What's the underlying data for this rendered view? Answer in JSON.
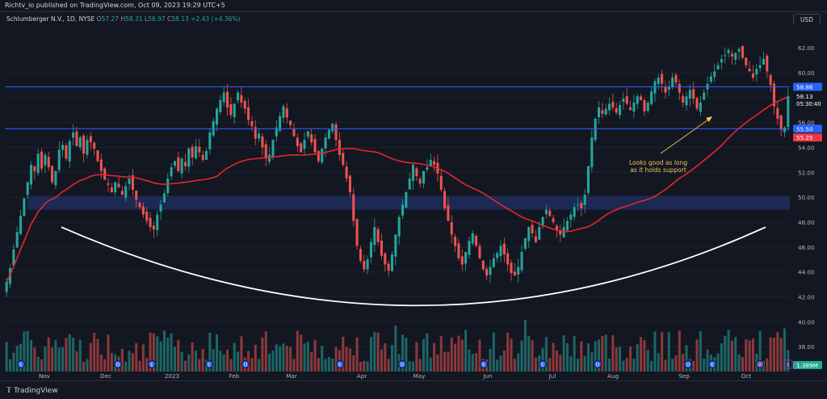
{
  "header": {
    "published": "Richtv_io published on TradingView.com, Oct 09, 2023 19:29 UTC+5"
  },
  "legend": {
    "symbol": "Schlumberger N.V., 1D, NYSE",
    "o_label": "O",
    "o_value": "57.27",
    "h_label": "H",
    "h_value": "58.31",
    "l_label": "L",
    "l_value": "56.97",
    "c_label": "C",
    "c_value": "58.13",
    "change": "+2.43 (+4.36%)"
  },
  "currency": "USD",
  "footer": {
    "brand": "TradingView"
  },
  "annotation": {
    "line1": "Looks good as long",
    "line2": "as it holds support"
  },
  "colors": {
    "bg": "#131722",
    "up": "#26a69a",
    "down": "#ef5350",
    "ma": "#e5262a",
    "hline": "#2962ff",
    "zone": "#1e2d5c",
    "arc": "#ffffff",
    "note": "#f5c451"
  },
  "chart_data": {
    "type": "candlestick",
    "title": "Schlumberger N.V., 1D, NYSE",
    "ylim": [
      36,
      63.5
    ],
    "y_ticks": [
      "62.00",
      "60.00",
      "58.00",
      "56.00",
      "54.00",
      "52.00",
      "50.00",
      "48.00",
      "46.00",
      "44.00",
      "42.00",
      "40.00",
      "38.00"
    ],
    "x_ticks": [
      "Nov",
      "Dec",
      "2023",
      "Feb",
      "Mar",
      "Apr",
      "May",
      "Jun",
      "Jul",
      "Aug",
      "Sep",
      "Oct"
    ],
    "horizontal_lines": [
      {
        "value": 58.86,
        "label": "58.86"
      },
      {
        "value": 55.5,
        "label": "55.50"
      }
    ],
    "support_zone": [
      49.0,
      50.1
    ],
    "price_labels": [
      {
        "value": 58.13,
        "label": "58.13",
        "sublabel": "05:30:40"
      },
      {
        "value": 55.25,
        "label": "55.25"
      }
    ],
    "volume_label": "1.389M",
    "closes": [
      43.2,
      44.3,
      45.8,
      47.2,
      48.5,
      49.9,
      51.2,
      52.6,
      52.1,
      53.5,
      52.3,
      53.4,
      52.4,
      51.2,
      52.1,
      53.8,
      54.2,
      53.1,
      54.5,
      55.2,
      54.1,
      54.8,
      53.5,
      54.6,
      54.4,
      53.9,
      52.9,
      52.1,
      51.4,
      51.0,
      50.4,
      51.2,
      50.8,
      50.2,
      50.9,
      51.5,
      50.6,
      49.8,
      49.2,
      48.6,
      48.1,
      47.6,
      47.4,
      48.6,
      49.4,
      50.3,
      51.5,
      52.4,
      52.9,
      52.1,
      53.1,
      52.5,
      53.9,
      53.2,
      54.1,
      53.6,
      53.0,
      53.7,
      55.2,
      56.1,
      57.1,
      57.8,
      58.4,
      57.2,
      56.6,
      57.5,
      58.4,
      57.6,
      57.1,
      56.2,
      55.7,
      54.7,
      55.1,
      54.0,
      53.1,
      53.4,
      54.6,
      55.6,
      56.5,
      57.3,
      56.4,
      55.8,
      54.9,
      54.1,
      53.6,
      54.6,
      55.3,
      54.4,
      53.6,
      52.9,
      53.9,
      54.8,
      55.4,
      55.9,
      54.6,
      53.4,
      52.6,
      51.5,
      50.4,
      48.1,
      46.1,
      44.9,
      44.2,
      45.0,
      46.4,
      47.6,
      46.4,
      45.3,
      44.6,
      44.1,
      45.4,
      47.0,
      48.4,
      49.4,
      50.4,
      51.5,
      52.6,
      51.7,
      51.1,
      52.1,
      52.4,
      53.0,
      52.6,
      51.9,
      50.6,
      49.1,
      48.1,
      47.0,
      46.1,
      45.1,
      44.6,
      45.6,
      46.5,
      47.1,
      46.1,
      45.1,
      44.2,
      43.7,
      44.4,
      45.1,
      45.5,
      46.1,
      45.4,
      44.6,
      43.9,
      43.7,
      44.4,
      45.6,
      46.7,
      47.6,
      47.1,
      46.4,
      47.6,
      48.4,
      49.0,
      48.5,
      48.0,
      47.4,
      47.0,
      47.6,
      48.1,
      48.6,
      49.2,
      49.4,
      49.1,
      50.2,
      52.5,
      54.8,
      56.3,
      57.2,
      56.7,
      57.1,
      57.5,
      57.2,
      56.8,
      57.4,
      57.9,
      57.5,
      57.0,
      57.6,
      58.1,
      57.8,
      56.9,
      57.6,
      58.5,
      59.3,
      59.6,
      59.1,
      58.4,
      58.9,
      59.6,
      59.2,
      58.4,
      57.6,
      58.1,
      58.6,
      57.9,
      57.1,
      57.6,
      58.4,
      59.1,
      59.7,
      60.1,
      60.6,
      61.1,
      61.4,
      61.8,
      61.3,
      61.6,
      61.9,
      61.2,
      60.6,
      60.1,
      59.6,
      60.3,
      60.6,
      61.1,
      60.1,
      59.0,
      57.3,
      56.3,
      55.4,
      55.6,
      58.13
    ]
  }
}
